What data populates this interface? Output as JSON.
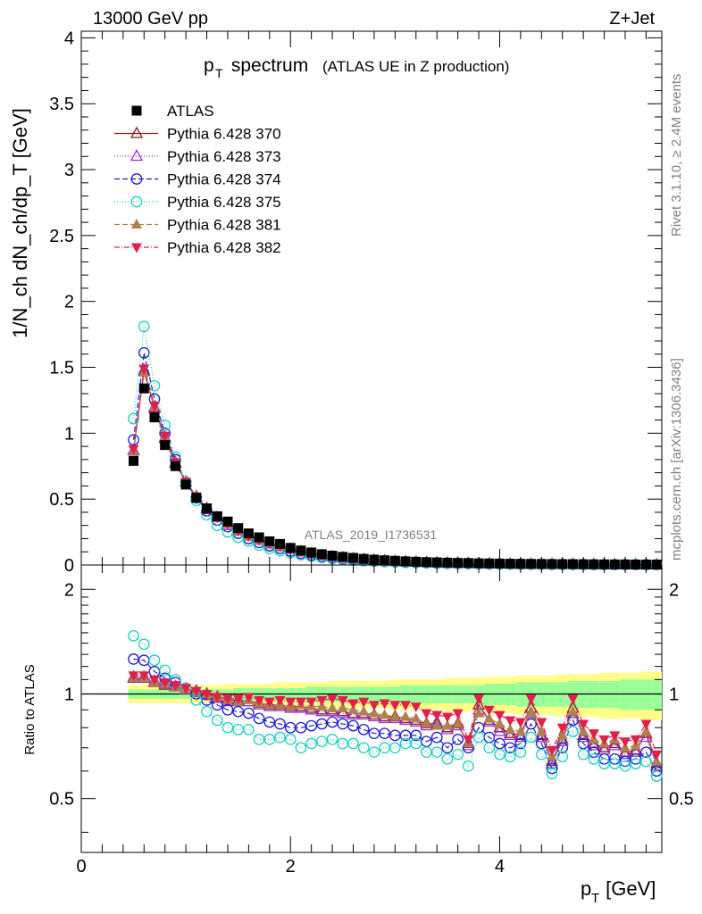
{
  "header": {
    "energy": "13000 GeV pp",
    "process": "Z+Jet",
    "rivet": "Rivet 3.1.10, ≥ 2.4M events",
    "site": "mcplots.cern.ch [arXiv:1306.3436]",
    "analysis": "ATLAS_2019_I1736531"
  },
  "chart_data": [
    {
      "type": "line",
      "panel": "main",
      "title_main": "p",
      "title_sub": "T",
      "title_rest": " spectrum",
      "title_paren": "(ATLAS UE in Z production)",
      "ylabel": "1/N_ch dN_ch/dp_T [GeV]",
      "ylim": [
        0,
        4.05
      ],
      "xlim": [
        0,
        5.55
      ],
      "yticks": [
        "0",
        "0.5",
        "1",
        "1.5",
        "2",
        "2.5",
        "3",
        "3.5",
        "4"
      ],
      "x": [
        0.5,
        0.6,
        0.7,
        0.8,
        0.9,
        1.0,
        1.1,
        1.2,
        1.3,
        1.4,
        1.5,
        1.6,
        1.7,
        1.8,
        1.9,
        2.0,
        2.1,
        2.2,
        2.3,
        2.4,
        2.5,
        2.6,
        2.7,
        2.8,
        2.9,
        3.0,
        3.1,
        3.2,
        3.3,
        3.4,
        3.5,
        3.6,
        3.7,
        3.8,
        3.9,
        4.0,
        4.1,
        4.2,
        4.3,
        4.4,
        4.5,
        4.6,
        4.7,
        4.8,
        4.9,
        5.0,
        5.1,
        5.2,
        5.3,
        5.4,
        5.5
      ],
      "series": [
        {
          "name": "ATLAS",
          "values": [
            0.79,
            1.34,
            1.12,
            0.91,
            0.75,
            0.61,
            0.51,
            0.43,
            0.37,
            0.33,
            0.28,
            0.24,
            0.21,
            0.18,
            0.16,
            0.13,
            0.11,
            0.095,
            0.082,
            0.071,
            0.062,
            0.054,
            0.047,
            0.041,
            0.036,
            0.032,
            0.028,
            0.025,
            0.022,
            0.02,
            0.018,
            0.016,
            0.015,
            0.013,
            0.012,
            0.011,
            0.01,
            0.009,
            0.0085,
            0.008,
            0.0075,
            0.007,
            0.0065,
            0.006,
            0.0055,
            0.005,
            0.0047,
            0.0044,
            0.004,
            0.0038,
            0.0035
          ]
        },
        {
          "name": "Pythia 6.428 370",
          "values": [
            0.87,
            1.47,
            1.19,
            0.96,
            0.77,
            0.63,
            0.52,
            0.42,
            0.36,
            0.3,
            0.26,
            0.22,
            0.19,
            0.16,
            0.14,
            0.12,
            0.1,
            0.085,
            0.072,
            0.062,
            0.054,
            0.047,
            0.041,
            0.036,
            0.031,
            0.027,
            0.024,
            0.021,
            0.018,
            0.016,
            0.014,
            0.013,
            0.011,
            0.01,
            0.009,
            0.008,
            0.007,
            0.0065,
            0.006,
            0.0055,
            0.005,
            0.0045,
            0.004,
            0.0038,
            0.0035,
            0.0032,
            0.003,
            0.0028,
            0.0026,
            0.0024,
            0.0022
          ]
        },
        {
          "name": "Pythia 6.428 373",
          "values": [
            0.87,
            1.48,
            1.2,
            0.97,
            0.78,
            0.63,
            0.52,
            0.43,
            0.36,
            0.3,
            0.26,
            0.22,
            0.19,
            0.16,
            0.14,
            0.12,
            0.1,
            0.085,
            0.072,
            0.062,
            0.054,
            0.047,
            0.041,
            0.036,
            0.031,
            0.027,
            0.024,
            0.021,
            0.018,
            0.016,
            0.014,
            0.013,
            0.011,
            0.01,
            0.009,
            0.008,
            0.007,
            0.0065,
            0.006,
            0.0055,
            0.005,
            0.0045,
            0.004,
            0.0038,
            0.0035,
            0.0032,
            0.003,
            0.0028,
            0.0026,
            0.0024,
            0.0022
          ]
        },
        {
          "name": "Pythia 6.428 374",
          "values": [
            0.95,
            1.61,
            1.26,
            1.0,
            0.8,
            0.63,
            0.51,
            0.41,
            0.34,
            0.29,
            0.24,
            0.2,
            0.17,
            0.145,
            0.125,
            0.105,
            0.088,
            0.075,
            0.063,
            0.054,
            0.046,
            0.04,
            0.035,
            0.03,
            0.026,
            0.023,
            0.02,
            0.018,
            0.016,
            0.014,
            0.012,
            0.011,
            0.01,
            0.009,
            0.008,
            0.007,
            0.0065,
            0.006,
            0.0055,
            0.005,
            0.0045,
            0.0042,
            0.004,
            0.0037,
            0.0034,
            0.0031,
            0.0029,
            0.0027,
            0.0025,
            0.0023,
            0.0021
          ]
        },
        {
          "name": "Pythia 6.428 375",
          "values": [
            1.11,
            1.81,
            1.36,
            1.06,
            0.82,
            0.63,
            0.49,
            0.38,
            0.3,
            0.25,
            0.21,
            0.18,
            0.15,
            0.125,
            0.108,
            0.092,
            0.078,
            0.066,
            0.056,
            0.048,
            0.041,
            0.036,
            0.031,
            0.027,
            0.024,
            0.021,
            0.018,
            0.016,
            0.014,
            0.012,
            0.011,
            0.01,
            0.009,
            0.008,
            0.007,
            0.0065,
            0.006,
            0.0055,
            0.005,
            0.0045,
            0.0042,
            0.004,
            0.0037,
            0.0034,
            0.0031,
            0.0029,
            0.0027,
            0.0025,
            0.0023,
            0.0021,
            0.0019
          ]
        },
        {
          "name": "Pythia 6.428 381",
          "values": [
            0.86,
            1.46,
            1.2,
            0.97,
            0.78,
            0.63,
            0.52,
            0.43,
            0.36,
            0.31,
            0.26,
            0.22,
            0.19,
            0.165,
            0.142,
            0.122,
            0.104,
            0.088,
            0.075,
            0.064,
            0.056,
            0.049,
            0.042,
            0.037,
            0.032,
            0.028,
            0.025,
            0.022,
            0.019,
            0.017,
            0.015,
            0.013,
            0.012,
            0.011,
            0.0095,
            0.0085,
            0.0075,
            0.0068,
            0.006,
            0.0055,
            0.005,
            0.0046,
            0.0042,
            0.0039,
            0.0036,
            0.0033,
            0.0031,
            0.0029,
            0.0027,
            0.0025,
            0.0023
          ]
        },
        {
          "name": "Pythia 6.428 382",
          "values": [
            0.88,
            1.49,
            1.21,
            0.98,
            0.78,
            0.63,
            0.52,
            0.43,
            0.36,
            0.31,
            0.26,
            0.22,
            0.19,
            0.165,
            0.142,
            0.122,
            0.104,
            0.088,
            0.075,
            0.064,
            0.056,
            0.049,
            0.042,
            0.037,
            0.032,
            0.028,
            0.025,
            0.022,
            0.019,
            0.017,
            0.015,
            0.013,
            0.012,
            0.011,
            0.0095,
            0.0085,
            0.0075,
            0.0068,
            0.006,
            0.0055,
            0.005,
            0.0046,
            0.0042,
            0.0039,
            0.0036,
            0.0033,
            0.0031,
            0.0029,
            0.0027,
            0.0025,
            0.0023
          ]
        }
      ]
    },
    {
      "type": "line",
      "panel": "ratio",
      "ylabel": "Ratio to ATLAS",
      "xlabel": "p_T [GeV]",
      "xlabel_main": "p",
      "xlabel_sub": "T",
      "xlabel_rest": " [GeV]",
      "ylim": [
        0.35,
        2.35
      ],
      "xlim": [
        0,
        5.55
      ],
      "yticks": [
        "0.5",
        "1",
        "2"
      ],
      "xticks": [
        "0",
        "2",
        "4"
      ],
      "band_inner": [
        0.03,
        0.03,
        0.03,
        0.03,
        0.03,
        0.03,
        0.03,
        0.03,
        0.03,
        0.03,
        0.04,
        0.04,
        0.04,
        0.04,
        0.04,
        0.04,
        0.04,
        0.05,
        0.05,
        0.05,
        0.05,
        0.05,
        0.05,
        0.05,
        0.05,
        0.05,
        0.06,
        0.06,
        0.06,
        0.06,
        0.06,
        0.06,
        0.06,
        0.06,
        0.07,
        0.07,
        0.07,
        0.08,
        0.08,
        0.08,
        0.08,
        0.08,
        0.09,
        0.09,
        0.09,
        0.09,
        0.09,
        0.1,
        0.1,
        0.1,
        0.1
      ],
      "band_outer": [
        0.06,
        0.06,
        0.06,
        0.06,
        0.06,
        0.06,
        0.06,
        0.06,
        0.06,
        0.07,
        0.07,
        0.07,
        0.07,
        0.07,
        0.08,
        0.08,
        0.08,
        0.08,
        0.08,
        0.09,
        0.09,
        0.09,
        0.09,
        0.09,
        0.09,
        0.1,
        0.1,
        0.1,
        0.1,
        0.1,
        0.11,
        0.11,
        0.11,
        0.11,
        0.12,
        0.12,
        0.12,
        0.13,
        0.13,
        0.13,
        0.13,
        0.14,
        0.14,
        0.14,
        0.14,
        0.15,
        0.15,
        0.15,
        0.15,
        0.16,
        0.16
      ],
      "series": [
        {
          "name": "Pythia 6.428 370",
          "values": [
            1.11,
            1.11,
            1.08,
            1.06,
            1.05,
            1.03,
            1.02,
            1.0,
            0.98,
            0.96,
            0.96,
            0.95,
            0.94,
            0.93,
            0.93,
            0.92,
            0.92,
            0.91,
            0.9,
            0.9,
            0.89,
            0.88,
            0.88,
            0.87,
            0.86,
            0.86,
            0.85,
            0.84,
            0.82,
            0.82,
            0.8,
            0.82,
            0.72,
            0.93,
            0.84,
            0.8,
            0.77,
            0.76,
            0.91,
            0.76,
            0.64,
            0.74,
            0.91,
            0.76,
            0.72,
            0.7,
            0.72,
            0.68,
            0.69,
            0.77,
            0.63
          ]
        },
        {
          "name": "Pythia 6.428 373",
          "values": [
            1.12,
            1.12,
            1.09,
            1.07,
            1.05,
            1.03,
            1.01,
            0.99,
            0.97,
            0.95,
            0.95,
            0.95,
            0.93,
            0.92,
            0.92,
            0.91,
            0.91,
            0.9,
            0.89,
            0.89,
            0.88,
            0.87,
            0.87,
            0.86,
            0.85,
            0.85,
            0.84,
            0.83,
            0.81,
            0.83,
            0.79,
            0.81,
            0.71,
            0.9,
            0.83,
            0.78,
            0.76,
            0.75,
            0.88,
            0.75,
            0.63,
            0.73,
            0.88,
            0.75,
            0.71,
            0.69,
            0.71,
            0.67,
            0.68,
            0.75,
            0.62
          ]
        },
        {
          "name": "Pythia 6.428 374",
          "values": [
            1.26,
            1.25,
            1.16,
            1.11,
            1.08,
            1.04,
            1.0,
            0.96,
            0.93,
            0.9,
            0.89,
            0.88,
            0.85,
            0.83,
            0.82,
            0.8,
            0.8,
            0.81,
            0.82,
            0.83,
            0.82,
            0.81,
            0.79,
            0.77,
            0.77,
            0.76,
            0.76,
            0.76,
            0.73,
            0.75,
            0.7,
            0.74,
            0.7,
            0.8,
            0.75,
            0.72,
            0.7,
            0.72,
            0.82,
            0.72,
            0.61,
            0.7,
            0.84,
            0.72,
            0.68,
            0.65,
            0.65,
            0.64,
            0.65,
            0.68,
            0.6
          ]
        },
        {
          "name": "Pythia 6.428 375",
          "values": [
            1.47,
            1.39,
            1.25,
            1.17,
            1.1,
            1.04,
            0.96,
            0.89,
            0.84,
            0.8,
            0.79,
            0.79,
            0.74,
            0.74,
            0.75,
            0.74,
            0.7,
            0.72,
            0.73,
            0.74,
            0.72,
            0.72,
            0.7,
            0.68,
            0.7,
            0.7,
            0.72,
            0.72,
            0.68,
            0.68,
            0.65,
            0.67,
            0.62,
            0.75,
            0.7,
            0.67,
            0.66,
            0.68,
            0.75,
            0.67,
            0.59,
            0.66,
            0.78,
            0.67,
            0.65,
            0.63,
            0.63,
            0.62,
            0.63,
            0.64,
            0.58
          ]
        },
        {
          "name": "Pythia 6.428 381",
          "values": [
            1.11,
            1.11,
            1.08,
            1.07,
            1.05,
            1.03,
            1.02,
            1.0,
            0.98,
            0.96,
            0.95,
            0.96,
            0.94,
            0.93,
            0.93,
            0.92,
            0.93,
            0.92,
            0.92,
            0.91,
            0.91,
            0.9,
            0.89,
            0.88,
            0.87,
            0.86,
            0.86,
            0.85,
            0.82,
            0.81,
            0.81,
            0.82,
            0.72,
            0.88,
            0.85,
            0.82,
            0.79,
            0.78,
            0.88,
            0.78,
            0.66,
            0.76,
            0.89,
            0.78,
            0.74,
            0.72,
            0.74,
            0.7,
            0.71,
            0.78,
            0.64
          ]
        },
        {
          "name": "Pythia 6.428 382",
          "values": [
            1.13,
            1.13,
            1.1,
            1.08,
            1.06,
            1.04,
            1.02,
            1.0,
            0.98,
            0.97,
            0.97,
            0.98,
            0.96,
            0.95,
            0.96,
            0.95,
            0.95,
            0.95,
            0.96,
            0.97,
            0.96,
            0.94,
            0.95,
            0.93,
            0.94,
            0.93,
            0.93,
            0.92,
            0.88,
            0.87,
            0.86,
            0.88,
            0.74,
            0.97,
            0.9,
            0.87,
            0.84,
            0.83,
            0.97,
            0.83,
            0.69,
            0.8,
            0.97,
            0.82,
            0.77,
            0.74,
            0.76,
            0.73,
            0.74,
            0.82,
            0.67
          ]
        }
      ]
    }
  ],
  "styles": [
    {
      "name": "ATLAS",
      "color": "#000000",
      "marker": "square-filled",
      "dash": "none"
    },
    {
      "name": "Pythia 6.428 370",
      "color": "#8b1a1a",
      "marker": "triangle-open",
      "dash": "solid"
    },
    {
      "name": "Pythia 6.428 373",
      "color": "#9932cc",
      "marker": "triangle-open",
      "dash": "1,2"
    },
    {
      "name": "Pythia 6.428 374",
      "color": "#1c1cd6",
      "marker": "circle-open",
      "dash": "6,3"
    },
    {
      "name": "Pythia 6.428 375",
      "color": "#20d0c0",
      "marker": "circle-open",
      "dash": "1,2"
    },
    {
      "name": "Pythia 6.428 381",
      "color": "#b08050",
      "marker": "triangle-filled",
      "dash": "6,3"
    },
    {
      "name": "Pythia 6.428 382",
      "color": "#e0204a",
      "marker": "triangle-down-filled",
      "dash": "6,2,1,2"
    }
  ],
  "band_colors": {
    "inner": "#99ff99",
    "outer": "#ffff88"
  }
}
